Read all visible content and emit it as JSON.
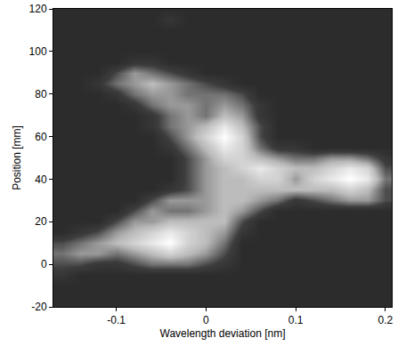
{
  "chart_data": {
    "type": "heatmap",
    "xlabel": "Wavelength deviation [nm]",
    "ylabel": "Position [mm]",
    "xlim": [
      -0.17,
      0.207
    ],
    "ylim": [
      -20,
      120
    ],
    "xticks": [
      -0.1,
      0,
      0.1,
      0.2
    ],
    "yticks": [
      -20,
      0,
      20,
      40,
      60,
      80,
      100,
      120
    ],
    "grid": false,
    "x": [
      -0.16,
      -0.14,
      -0.12,
      -0.1,
      -0.08,
      -0.06,
      -0.04,
      -0.02,
      0,
      0.02,
      0.04,
      0.06,
      0.08,
      0.1,
      0.12,
      0.14,
      0.16,
      0.18,
      0.2
    ],
    "y": [
      -20,
      -15,
      -10,
      -5,
      0,
      5,
      10,
      15,
      20,
      25,
      30,
      35,
      40,
      45,
      50,
      55,
      60,
      65,
      70,
      75,
      80,
      85,
      90,
      95,
      100,
      105,
      110,
      115,
      120
    ],
    "cells": [
      [
        1,
        1,
        1,
        1,
        1,
        1,
        1,
        1,
        1,
        1,
        1,
        1,
        1,
        1,
        1,
        1,
        1,
        1,
        1
      ],
      [
        1,
        1,
        1,
        1,
        1,
        1,
        1,
        1,
        1,
        1,
        1,
        1,
        1,
        1,
        1,
        1,
        1,
        1,
        1
      ],
      [
        1,
        1,
        1,
        1,
        1,
        1,
        1,
        1,
        1,
        1,
        1,
        1,
        1,
        1,
        1,
        1,
        1,
        1,
        1
      ],
      [
        2,
        1,
        1,
        1,
        1,
        1,
        1,
        1,
        1,
        1,
        1,
        1,
        1,
        1,
        1,
        1,
        1,
        1,
        1
      ],
      [
        3,
        3,
        2,
        2,
        3,
        4,
        4,
        4,
        3,
        2,
        1,
        1,
        1,
        1,
        1,
        1,
        1,
        1,
        1
      ],
      [
        4,
        5,
        5,
        4,
        5,
        6,
        7,
        6,
        5,
        3,
        1,
        1,
        1,
        1,
        1,
        1,
        1,
        1,
        1
      ],
      [
        3,
        4,
        5,
        6,
        7,
        8,
        9,
        7,
        6,
        4,
        1,
        1,
        1,
        1,
        1,
        1,
        1,
        1,
        1
      ],
      [
        1,
        2,
        3,
        5,
        6,
        7,
        8,
        7,
        6,
        5,
        2,
        1,
        1,
        1,
        1,
        1,
        1,
        1,
        1
      ],
      [
        1,
        1,
        1,
        3,
        5,
        5,
        6,
        6,
        6,
        6,
        3,
        1,
        1,
        1,
        1,
        1,
        1,
        1,
        1
      ],
      [
        1,
        1,
        1,
        1,
        3,
        5,
        4,
        4,
        5,
        6,
        5,
        3,
        1,
        1,
        1,
        1,
        1,
        1,
        1
      ],
      [
        1,
        1,
        1,
        1,
        1,
        3,
        5,
        5,
        5,
        6,
        6,
        5,
        4,
        2,
        3,
        4,
        5,
        5,
        3
      ],
      [
        1,
        1,
        1,
        1,
        1,
        1,
        2,
        3,
        5,
        6,
        6,
        6,
        6,
        6,
        6,
        6,
        7,
        6,
        3
      ],
      [
        1,
        1,
        1,
        1,
        1,
        1,
        1,
        3,
        5,
        6,
        6,
        7,
        7,
        5,
        7,
        8,
        9,
        8,
        4
      ],
      [
        1,
        1,
        1,
        1,
        1,
        1,
        1,
        3,
        5,
        6,
        7,
        8,
        7,
        6,
        6,
        7,
        8,
        7,
        3
      ],
      [
        1,
        1,
        1,
        1,
        1,
        1,
        1,
        3,
        5,
        7,
        7,
        6,
        5,
        4,
        4,
        5,
        5,
        4,
        2
      ],
      [
        1,
        1,
        1,
        1,
        1,
        1,
        2,
        4,
        6,
        8,
        7,
        4,
        2,
        2,
        1,
        1,
        1,
        1,
        1
      ],
      [
        1,
        1,
        1,
        1,
        1,
        1,
        3,
        5,
        7,
        9,
        7,
        3,
        1,
        1,
        1,
        1,
        1,
        1,
        1
      ],
      [
        1,
        1,
        1,
        1,
        1,
        2,
        4,
        5,
        6,
        8,
        6,
        3,
        1,
        1,
        1,
        1,
        1,
        1,
        1
      ],
      [
        1,
        1,
        1,
        1,
        1,
        2,
        4,
        5,
        4,
        6,
        5,
        2,
        1,
        1,
        1,
        1,
        1,
        1,
        1
      ],
      [
        1,
        1,
        1,
        1,
        2,
        4,
        5,
        5,
        4,
        5,
        4,
        2,
        1,
        1,
        1,
        1,
        1,
        1,
        1
      ],
      [
        1,
        1,
        1,
        2,
        4,
        5,
        5,
        4,
        4,
        4,
        3,
        1,
        1,
        1,
        1,
        1,
        1,
        1,
        1
      ],
      [
        1,
        1,
        2,
        4,
        5,
        6,
        5,
        4,
        3,
        2,
        1,
        1,
        1,
        1,
        1,
        1,
        1,
        1,
        1
      ],
      [
        1,
        1,
        1,
        3,
        5,
        4,
        3,
        2,
        1,
        1,
        1,
        1,
        1,
        1,
        1,
        1,
        1,
        1,
        1
      ],
      [
        1,
        1,
        1,
        1,
        2,
        2,
        1,
        1,
        1,
        1,
        1,
        1,
        1,
        1,
        1,
        1,
        1,
        1,
        1
      ],
      [
        1,
        1,
        1,
        1,
        1,
        1,
        1,
        1,
        1,
        1,
        1,
        1,
        1,
        1,
        1,
        1,
        1,
        1,
        1
      ],
      [
        1,
        1,
        1,
        1,
        1,
        1,
        1,
        1,
        1,
        1,
        1,
        1,
        1,
        1,
        1,
        1,
        1,
        1,
        1
      ],
      [
        1,
        1,
        1,
        1,
        1,
        1,
        1,
        1,
        1,
        1,
        1,
        1,
        1,
        1,
        1,
        1,
        1,
        1,
        1
      ],
      [
        1,
        1,
        1,
        1,
        1,
        1,
        2,
        1,
        1,
        1,
        1,
        1,
        1,
        1,
        1,
        1,
        1,
        1,
        1
      ],
      [
        1,
        1,
        1,
        1,
        1,
        1,
        1,
        1,
        1,
        1,
        1,
        1,
        1,
        1,
        1,
        1,
        1,
        1,
        1
      ]
    ]
  }
}
